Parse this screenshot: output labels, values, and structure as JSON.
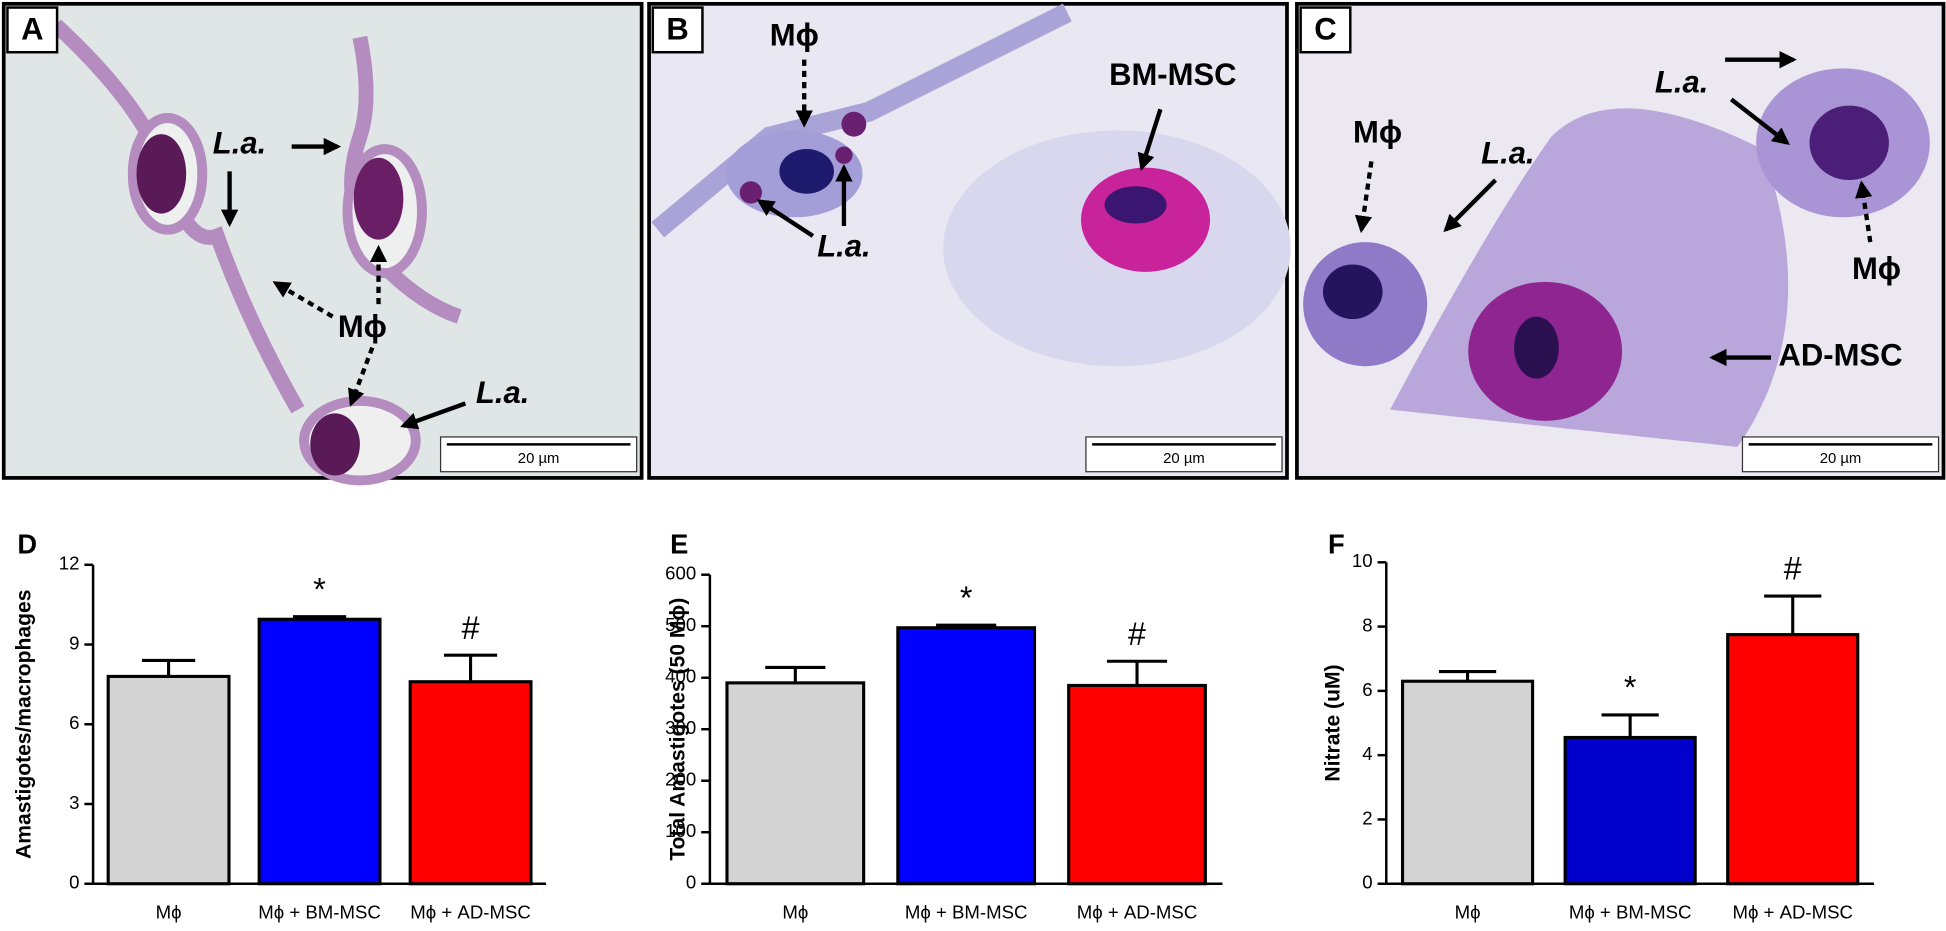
{
  "micrographs": [
    {
      "panel": "A",
      "labels": [
        "L.a.",
        "Mϕ",
        "L.a."
      ],
      "scale_bar": "20 µm"
    },
    {
      "panel": "B",
      "labels": [
        "Mϕ",
        "BM-MSC",
        "L.a."
      ],
      "scale_bar": "20 µm"
    },
    {
      "panel": "C",
      "labels": [
        "L.a.",
        "Mϕ",
        "L.a.",
        "Mϕ",
        "AD-MSC"
      ],
      "scale_bar": "20 µm"
    }
  ],
  "chart_data": [
    {
      "type": "bar",
      "panel": "D",
      "ylabel": "Amastigotes/macrophages",
      "categories": [
        "Mϕ",
        "Mϕ + BM-MSC",
        "Mϕ + AD-MSC"
      ],
      "values": [
        7.8,
        9.95,
        7.6
      ],
      "errors": [
        0.6,
        0.1,
        1.0
      ],
      "annotations": [
        null,
        "*",
        "#"
      ],
      "colors": [
        "#d3d3d3",
        "#0000ff",
        "#ff0000"
      ],
      "ylim": [
        0,
        12
      ],
      "yticks": [
        0,
        3,
        6,
        9,
        12
      ]
    },
    {
      "type": "bar",
      "panel": "E",
      "ylabel": "Total Amastigotes (50 Mϕ)",
      "categories": [
        "Mϕ",
        "Mϕ + BM-MSC",
        "Mϕ + AD-MSC"
      ],
      "values": [
        390,
        497,
        385
      ],
      "errors": [
        30,
        5,
        47
      ],
      "annotations": [
        null,
        "*",
        "#"
      ],
      "colors": [
        "#d3d3d3",
        "#0000ff",
        "#ff0000"
      ],
      "ylim": [
        0,
        600
      ],
      "yticks": [
        0,
        100,
        200,
        300,
        400,
        500,
        600
      ]
    },
    {
      "type": "bar",
      "panel": "F",
      "ylabel": "Nitrate (uM)",
      "categories": [
        "Mϕ",
        "Mϕ + BM-MSC",
        "Mϕ + AD-MSC"
      ],
      "values": [
        6.3,
        4.55,
        7.75
      ],
      "errors": [
        0.3,
        0.7,
        1.2
      ],
      "annotations": [
        null,
        "*",
        "#"
      ],
      "colors": [
        "#d3d3d3",
        "#0000cc",
        "#ff0000"
      ],
      "ylim": [
        0,
        10
      ],
      "yticks": [
        0,
        2,
        4,
        6,
        8,
        10
      ]
    }
  ]
}
